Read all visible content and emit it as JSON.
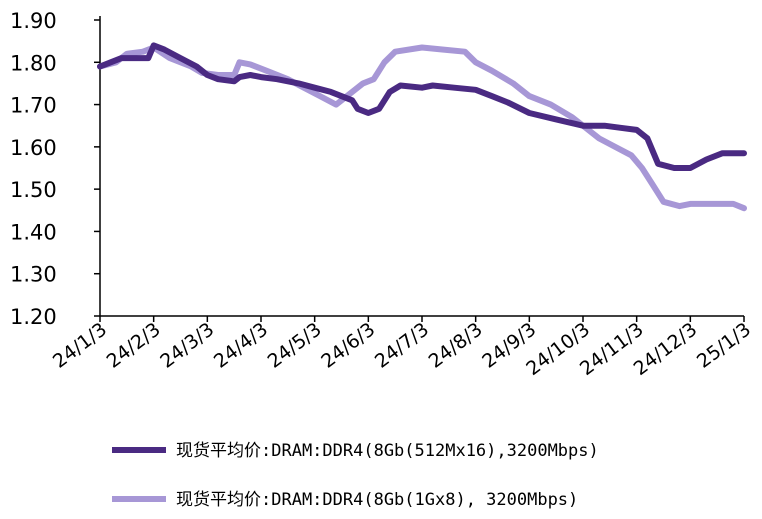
{
  "chart_data": {
    "type": "line",
    "title": "",
    "xlabel": "",
    "ylabel": "",
    "ylim": [
      1.2,
      1.9
    ],
    "yticks": [
      "1.20",
      "1.30",
      "1.40",
      "1.50",
      "1.60",
      "1.70",
      "1.80",
      "1.90"
    ],
    "xticks": [
      "24/1/3",
      "24/2/3",
      "24/3/3",
      "24/4/3",
      "24/5/3",
      "24/6/3",
      "24/7/3",
      "24/8/3",
      "24/9/3",
      "24/10/3",
      "24/11/3",
      "24/12/3",
      "25/1/3"
    ],
    "grid": false,
    "legend_position": "bottom",
    "x_unit": "months since 24/1/3",
    "series": [
      {
        "name": "现货平均价:DRAM:DDR4(8Gb(512Mx16),3200Mbps)",
        "color": "#4a2a82",
        "points": [
          [
            0,
            1.79
          ],
          [
            0.2,
            1.8
          ],
          [
            0.4,
            1.81
          ],
          [
            0.7,
            1.81
          ],
          [
            0.9,
            1.81
          ],
          [
            1.0,
            1.84
          ],
          [
            1.2,
            1.83
          ],
          [
            1.5,
            1.81
          ],
          [
            1.8,
            1.79
          ],
          [
            2.0,
            1.77
          ],
          [
            2.2,
            1.76
          ],
          [
            2.5,
            1.755
          ],
          [
            2.6,
            1.765
          ],
          [
            2.8,
            1.77
          ],
          [
            3.0,
            1.765
          ],
          [
            3.3,
            1.76
          ],
          [
            3.7,
            1.75
          ],
          [
            4.0,
            1.74
          ],
          [
            4.3,
            1.73
          ],
          [
            4.7,
            1.71
          ],
          [
            4.8,
            1.69
          ],
          [
            5.0,
            1.68
          ],
          [
            5.2,
            1.69
          ],
          [
            5.4,
            1.73
          ],
          [
            5.6,
            1.745
          ],
          [
            6.0,
            1.74
          ],
          [
            6.2,
            1.745
          ],
          [
            6.6,
            1.74
          ],
          [
            7.0,
            1.735
          ],
          [
            7.3,
            1.72
          ],
          [
            7.6,
            1.705
          ],
          [
            8.0,
            1.68
          ],
          [
            8.5,
            1.665
          ],
          [
            9.0,
            1.65
          ],
          [
            9.4,
            1.65
          ],
          [
            9.7,
            1.645
          ],
          [
            10.0,
            1.64
          ],
          [
            10.2,
            1.62
          ],
          [
            10.4,
            1.56
          ],
          [
            10.7,
            1.55
          ],
          [
            11.0,
            1.55
          ],
          [
            11.3,
            1.57
          ],
          [
            11.6,
            1.585
          ],
          [
            12.0,
            1.585
          ]
        ]
      },
      {
        "name": "现货平均价:DRAM:DDR4(8Gb(1Gx8), 3200Mbps)",
        "color": "#a797d6",
        "points": [
          [
            0,
            1.79
          ],
          [
            0.3,
            1.8
          ],
          [
            0.5,
            1.82
          ],
          [
            0.8,
            1.825
          ],
          [
            1.0,
            1.835
          ],
          [
            1.3,
            1.81
          ],
          [
            1.7,
            1.79
          ],
          [
            1.9,
            1.775
          ],
          [
            2.2,
            1.77
          ],
          [
            2.5,
            1.77
          ],
          [
            2.6,
            1.8
          ],
          [
            2.8,
            1.795
          ],
          [
            3.1,
            1.78
          ],
          [
            3.5,
            1.76
          ],
          [
            3.8,
            1.74
          ],
          [
            4.1,
            1.72
          ],
          [
            4.4,
            1.7
          ],
          [
            4.6,
            1.72
          ],
          [
            4.9,
            1.75
          ],
          [
            5.1,
            1.76
          ],
          [
            5.3,
            1.8
          ],
          [
            5.5,
            1.825
          ],
          [
            6.0,
            1.835
          ],
          [
            6.4,
            1.83
          ],
          [
            6.8,
            1.825
          ],
          [
            7.0,
            1.8
          ],
          [
            7.3,
            1.78
          ],
          [
            7.7,
            1.75
          ],
          [
            8.0,
            1.72
          ],
          [
            8.4,
            1.7
          ],
          [
            8.8,
            1.67
          ],
          [
            9.0,
            1.65
          ],
          [
            9.3,
            1.62
          ],
          [
            9.6,
            1.6
          ],
          [
            9.9,
            1.58
          ],
          [
            10.1,
            1.55
          ],
          [
            10.3,
            1.51
          ],
          [
            10.5,
            1.47
          ],
          [
            10.8,
            1.46
          ],
          [
            11.0,
            1.465
          ],
          [
            11.3,
            1.465
          ],
          [
            11.6,
            1.465
          ],
          [
            11.8,
            1.465
          ],
          [
            12.0,
            1.455
          ]
        ]
      }
    ]
  }
}
